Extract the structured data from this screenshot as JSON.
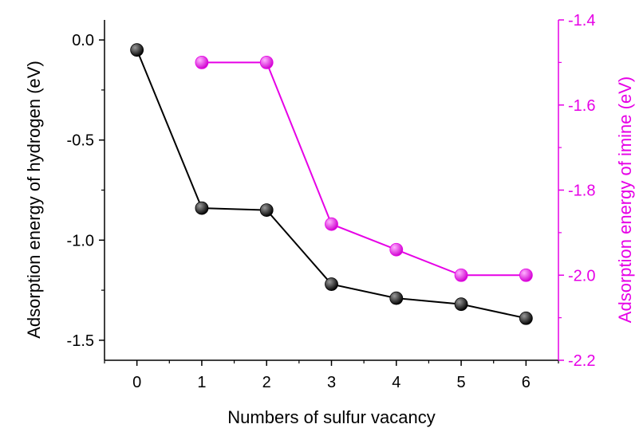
{
  "chart_data": {
    "type": "line",
    "title": "",
    "xlabel": "Numbers of sulfur vacancy",
    "ylabel_left": "Adsorption energy of hydrogen (eV)",
    "ylabel_right": "Adsorption energy of imine (eV)",
    "x_ticks": [
      "0",
      "1",
      "2",
      "3",
      "4",
      "5",
      "6"
    ],
    "xlim": [
      -0.5,
      6.5
    ],
    "ylim_left": [
      -1.6,
      0.1
    ],
    "ylim_right": [
      -2.2,
      -1.4
    ],
    "y_ticks_left": [
      "0.0",
      "-0.5",
      "-1.0",
      "-1.5"
    ],
    "y_ticks_right": [
      "-1.4",
      "-1.6",
      "-1.8",
      "-2.0",
      "-2.2"
    ],
    "grid": false,
    "series": [
      {
        "axis": "left",
        "color": "#000000",
        "x": [
          0,
          1,
          2,
          3,
          4,
          5,
          6
        ],
        "values": [
          -0.05,
          -0.84,
          -0.85,
          -1.22,
          -1.29,
          -1.32,
          -1.39
        ]
      },
      {
        "axis": "right",
        "color": "#e600e6",
        "x": [
          1,
          2,
          3,
          4,
          5,
          6
        ],
        "values": [
          -1.5,
          -1.5,
          -1.88,
          -1.94,
          -2.0,
          -2.0
        ]
      }
    ]
  }
}
